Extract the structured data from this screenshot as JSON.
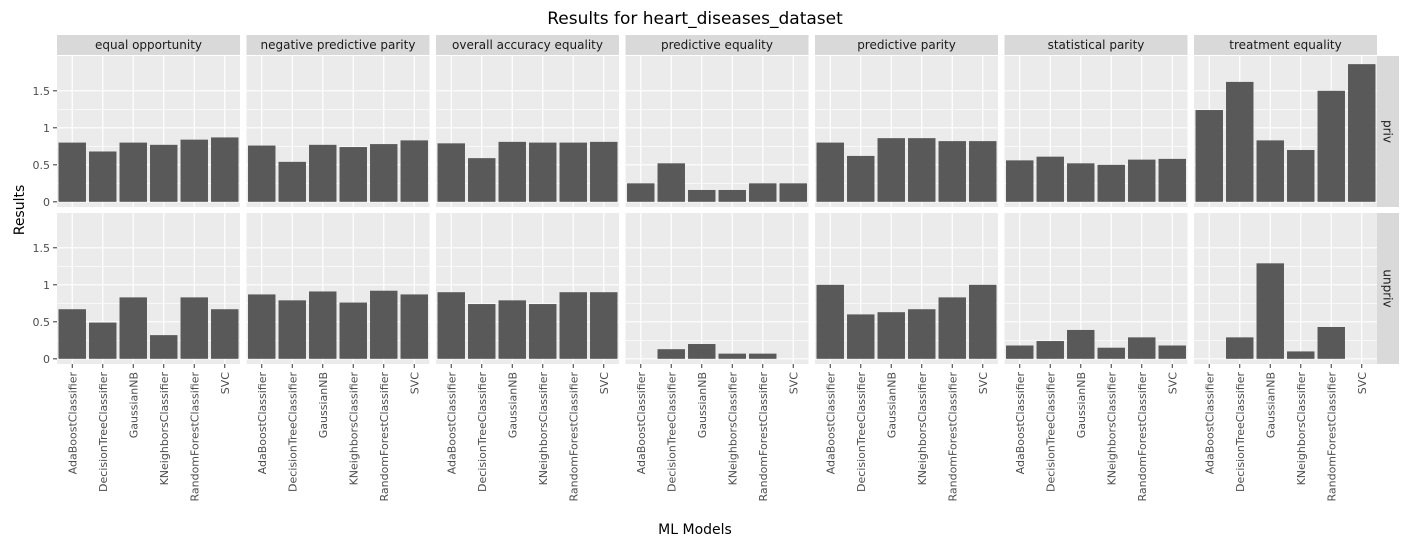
{
  "chart_data": {
    "type": "bar",
    "title": "Results for heart_diseases_dataset",
    "xlabel": "ML Models",
    "ylabel": "Results",
    "ylim": [
      -0.07,
      1.97
    ],
    "yticks": [
      0,
      0.5,
      1,
      1.5
    ],
    "ytick_labels": [
      "0",
      "0.5",
      "1",
      "1.5"
    ],
    "grid": true,
    "bar_color": "#595959",
    "panel_bg": "#ebebeb",
    "strip_bg": "#d9d9d9",
    "grid_color": "#ffffff",
    "categories": [
      "AdaBoostClassifier",
      "DecisionTreeClassifier",
      "GaussianNB",
      "KNeighborsClassifier",
      "RandomForestClassifier",
      "SVC"
    ],
    "facet_cols": [
      "equal opportunity",
      "negative predictive parity",
      "overall accuracy equality",
      "predictive equality",
      "predictive parity",
      "statistical parity",
      "treatment equality"
    ],
    "facet_rows": [
      "priv",
      "unpriv"
    ],
    "values": {
      "priv": [
        [
          0.8,
          0.68,
          0.8,
          0.77,
          0.84,
          0.87
        ],
        [
          0.76,
          0.54,
          0.77,
          0.74,
          0.78,
          0.83
        ],
        [
          0.79,
          0.59,
          0.81,
          0.8,
          0.8,
          0.81
        ],
        [
          0.25,
          0.52,
          0.16,
          0.16,
          0.25,
          0.25
        ],
        [
          0.8,
          0.62,
          0.86,
          0.86,
          0.82,
          0.82
        ],
        [
          0.56,
          0.61,
          0.52,
          0.5,
          0.57,
          0.58
        ],
        [
          1.24,
          1.62,
          0.83,
          0.7,
          1.5,
          1.86
        ]
      ],
      "unpriv": [
        [
          0.67,
          0.49,
          0.83,
          0.32,
          0.83,
          0.67
        ],
        [
          0.87,
          0.79,
          0.91,
          0.76,
          0.92,
          0.87
        ],
        [
          0.9,
          0.74,
          0.79,
          0.74,
          0.9,
          0.9
        ],
        [
          0.0,
          0.13,
          0.2,
          0.07,
          0.07,
          0.0
        ],
        [
          1.0,
          0.6,
          0.63,
          0.67,
          0.83,
          1.0
        ],
        [
          0.18,
          0.24,
          0.39,
          0.15,
          0.29,
          0.18
        ],
        [
          0.0,
          0.29,
          1.29,
          0.1,
          0.43,
          0.0
        ]
      ]
    }
  }
}
